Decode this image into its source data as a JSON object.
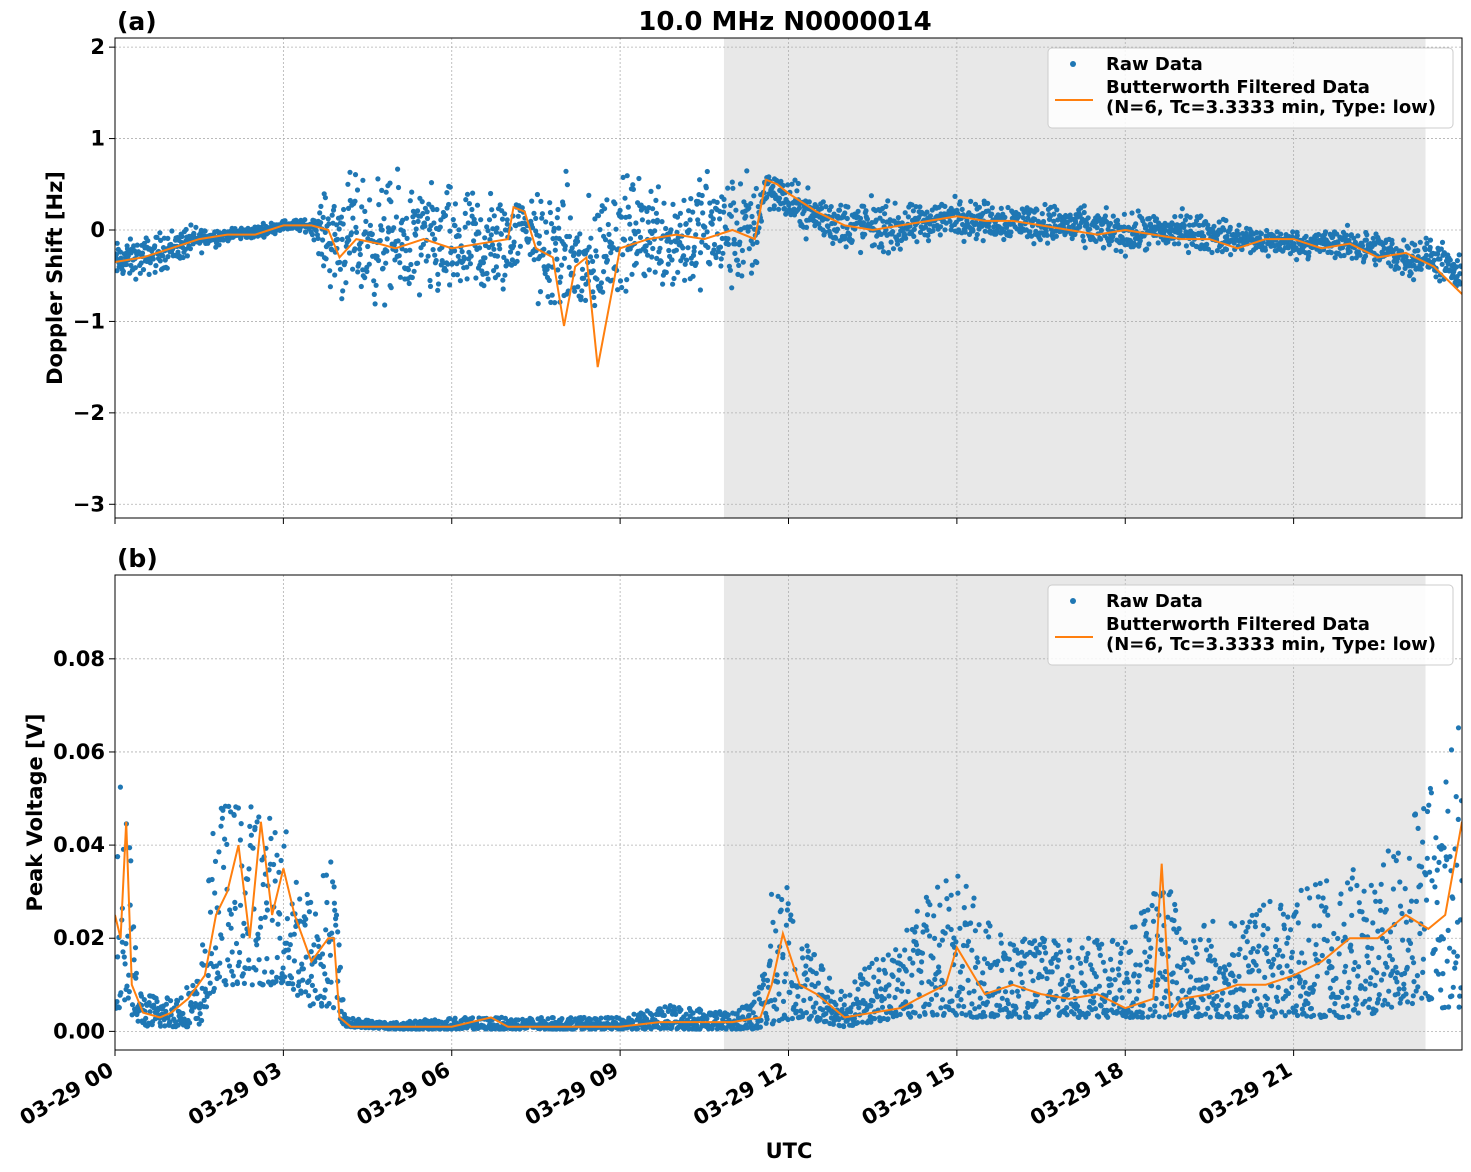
{
  "figure": {
    "title": "10.0 MHz N0000014",
    "xlabel": "UTC"
  },
  "chart_data": [
    {
      "type": "scatter",
      "panel_label": "(a)",
      "ylabel": "Doppler Shift [Hz]",
      "x_unit": "hours since 03-29 00:00 UTC",
      "xlim": [
        0,
        24
      ],
      "ylim": [
        -3.15,
        2.1
      ],
      "yticks": [
        -3,
        -2,
        -1,
        0,
        1,
        2
      ],
      "ytick_labels": [
        "−3",
        "−2",
        "−1",
        "0",
        "1",
        "2"
      ],
      "xticks": [
        0,
        3,
        6,
        9,
        12,
        15,
        18,
        21
      ],
      "xtick_labels": [
        "03-29 00",
        "03-29 03",
        "03-29 06",
        "03-29 09",
        "03-29 12",
        "03-29 15",
        "03-29 18",
        "03-29 21"
      ],
      "grid": true,
      "shaded_region": [
        10.85,
        23.35
      ],
      "legend_position": "upper-right",
      "series": [
        {
          "name": "Raw Data",
          "kind": "scatter",
          "color": "#1f77b4",
          "envelope": {
            "x": [
              0,
              0.5,
              1,
              1.5,
              2,
              2.5,
              3,
              3.5,
              3.9,
              4.3,
              5,
              5.5,
              6,
              6.5,
              7,
              7.3,
              7.6,
              8,
              8.4,
              8.8,
              9.5,
              10,
              10.5,
              11,
              11.4,
              11.6,
              12,
              12.5,
              13,
              13.5,
              14,
              14.5,
              15,
              15.5,
              16,
              17,
              18,
              19,
              20,
              21,
              22,
              23,
              23.5,
              24
            ],
            "center": [
              -0.35,
              -0.3,
              -0.2,
              -0.1,
              -0.05,
              -0.02,
              0.05,
              0.05,
              -0.1,
              -0.1,
              -0.15,
              -0.15,
              -0.2,
              -0.2,
              -0.15,
              0.1,
              -0.3,
              -0.2,
              -0.5,
              -0.1,
              0.0,
              -0.1,
              0.0,
              -0.05,
              0.0,
              0.5,
              0.3,
              0.15,
              0.05,
              0.05,
              0.0,
              0.1,
              0.15,
              0.1,
              0.1,
              0.05,
              -0.05,
              0.0,
              -0.1,
              -0.15,
              -0.15,
              -0.3,
              -0.3,
              -0.55
            ],
            "spread": [
              0.3,
              0.3,
              0.3,
              0.2,
              0.1,
              0.1,
              0.08,
              0.1,
              0.9,
              0.95,
              0.95,
              0.9,
              0.9,
              0.9,
              0.8,
              0.3,
              1.0,
              1.0,
              1.0,
              0.9,
              0.8,
              0.9,
              0.9,
              0.9,
              0.9,
              0.3,
              0.35,
              0.35,
              0.4,
              0.4,
              0.35,
              0.3,
              0.3,
              0.3,
              0.3,
              0.3,
              0.3,
              0.3,
              0.25,
              0.2,
              0.25,
              0.3,
              0.3,
              0.3
            ]
          }
        },
        {
          "name": "Butterworth Filtered Data\n(N=6, Tc=3.3333 min, Type: low)",
          "kind": "line",
          "color": "#ff7f0e",
          "x": [
            0,
            0.5,
            1,
            1.5,
            2,
            2.5,
            3,
            3.5,
            3.8,
            4,
            4.3,
            4.7,
            5,
            5.5,
            6,
            6.5,
            7,
            7.1,
            7.3,
            7.5,
            7.8,
            8,
            8.2,
            8.4,
            8.6,
            9,
            9.5,
            10,
            10.5,
            11,
            11.4,
            11.6,
            11.8,
            12,
            12.5,
            13,
            13.5,
            14,
            14.5,
            15,
            15.5,
            16,
            16.5,
            17,
            17.5,
            18,
            18.5,
            19,
            19.5,
            20,
            20.5,
            21,
            21.5,
            22,
            22.5,
            23,
            23.5,
            24
          ],
          "y": [
            -0.35,
            -0.3,
            -0.2,
            -0.1,
            -0.05,
            -0.05,
            0.05,
            0.05,
            0.0,
            -0.3,
            -0.1,
            -0.15,
            -0.2,
            -0.1,
            -0.2,
            -0.15,
            -0.1,
            0.25,
            0.2,
            -0.2,
            -0.3,
            -1.05,
            -0.4,
            -0.3,
            -1.5,
            -0.2,
            -0.1,
            -0.05,
            -0.1,
            0.0,
            -0.1,
            0.55,
            0.5,
            0.4,
            0.2,
            0.05,
            0.0,
            0.05,
            0.1,
            0.15,
            0.1,
            0.1,
            0.05,
            0.0,
            -0.05,
            0.0,
            -0.05,
            -0.1,
            -0.1,
            -0.2,
            -0.1,
            -0.1,
            -0.2,
            -0.15,
            -0.3,
            -0.25,
            -0.4,
            -0.7
          ]
        }
      ]
    },
    {
      "type": "scatter",
      "panel_label": "(b)",
      "ylabel": "Peak Voltage [V]",
      "x_unit": "hours since 03-29 00:00 UTC",
      "xlim": [
        0,
        24
      ],
      "ylim": [
        -0.004,
        0.098
      ],
      "yticks": [
        0.0,
        0.02,
        0.04,
        0.06,
        0.08
      ],
      "ytick_labels": [
        "0.00",
        "0.02",
        "0.04",
        "0.06",
        "0.08"
      ],
      "xticks": [
        0,
        3,
        6,
        9,
        12,
        15,
        18,
        21
      ],
      "xtick_labels": [
        "03-29 00",
        "03-29 03",
        "03-29 06",
        "03-29 09",
        "03-29 12",
        "03-29 15",
        "03-29 18",
        "03-29 21"
      ],
      "grid": true,
      "shaded_region": [
        10.85,
        23.35
      ],
      "legend_position": "upper-right",
      "series": [
        {
          "name": "Raw Data",
          "kind": "scatter",
          "color": "#1f77b4",
          "envelope": {
            "x": [
              0,
              0.2,
              0.4,
              0.6,
              1,
              1.5,
              1.8,
              2,
              2.5,
              3,
              3.5,
              3.9,
              4.1,
              5,
              6,
              7,
              8,
              9,
              10,
              11,
              11.5,
              11.8,
              12.2,
              13,
              13.5,
              14,
              14.5,
              15,
              15.5,
              16,
              17,
              18,
              18.7,
              19,
              20,
              21,
              22,
              22.5,
              23,
              23.5,
              24
            ],
            "low": [
              0.005,
              0.005,
              0.002,
              0.001,
              0.001,
              0.001,
              0.01,
              0.01,
              0.01,
              0.01,
              0.005,
              0.005,
              0.001,
              0.0005,
              0.0005,
              0.0005,
              0.0005,
              0.0005,
              0.0005,
              0.0005,
              0.0005,
              0.002,
              0.003,
              0.001,
              0.002,
              0.003,
              0.003,
              0.003,
              0.003,
              0.003,
              0.003,
              0.003,
              0.003,
              0.003,
              0.003,
              0.003,
              0.003,
              0.004,
              0.006,
              0.005,
              0.005
            ],
            "high": [
              0.055,
              0.06,
              0.01,
              0.008,
              0.008,
              0.012,
              0.05,
              0.05,
              0.05,
              0.045,
              0.03,
              0.04,
              0.003,
              0.002,
              0.003,
              0.003,
              0.003,
              0.003,
              0.006,
              0.004,
              0.01,
              0.04,
              0.02,
              0.01,
              0.015,
              0.02,
              0.03,
              0.035,
              0.025,
              0.02,
              0.02,
              0.02,
              0.035,
              0.025,
              0.025,
              0.03,
              0.035,
              0.035,
              0.045,
              0.055,
              0.07
            ]
          }
        },
        {
          "name": "Butterworth Filtered Data\n(N=6, Tc=3.3333 min, Type: low)",
          "kind": "line",
          "color": "#ff7f0e",
          "x": [
            0,
            0.1,
            0.2,
            0.3,
            0.5,
            0.8,
            1,
            1.3,
            1.6,
            1.8,
            2,
            2.2,
            2.4,
            2.6,
            2.8,
            3,
            3.2,
            3.5,
            3.8,
            3.9,
            4,
            4.2,
            5,
            6,
            6.7,
            7,
            8,
            9,
            9.7,
            10,
            11,
            11.5,
            11.7,
            11.9,
            12.2,
            12.5,
            13,
            13.5,
            14,
            14.3,
            14.8,
            15,
            15.5,
            16,
            16.5,
            17,
            17.5,
            18,
            18.5,
            18.65,
            18.8,
            19,
            19.5,
            20,
            20.5,
            21,
            21.5,
            22,
            22.5,
            23,
            23.4,
            23.7,
            24
          ],
          "y": [
            0.025,
            0.02,
            0.045,
            0.01,
            0.004,
            0.003,
            0.004,
            0.007,
            0.012,
            0.025,
            0.03,
            0.04,
            0.02,
            0.045,
            0.025,
            0.035,
            0.025,
            0.015,
            0.02,
            0.02,
            0.003,
            0.001,
            0.001,
            0.001,
            0.003,
            0.001,
            0.001,
            0.001,
            0.002,
            0.002,
            0.002,
            0.003,
            0.01,
            0.021,
            0.01,
            0.008,
            0.003,
            0.004,
            0.005,
            0.007,
            0.01,
            0.018,
            0.008,
            0.01,
            0.008,
            0.007,
            0.008,
            0.005,
            0.007,
            0.036,
            0.004,
            0.007,
            0.008,
            0.01,
            0.01,
            0.012,
            0.015,
            0.02,
            0.02,
            0.025,
            0.022,
            0.025,
            0.045
          ]
        }
      ]
    }
  ]
}
